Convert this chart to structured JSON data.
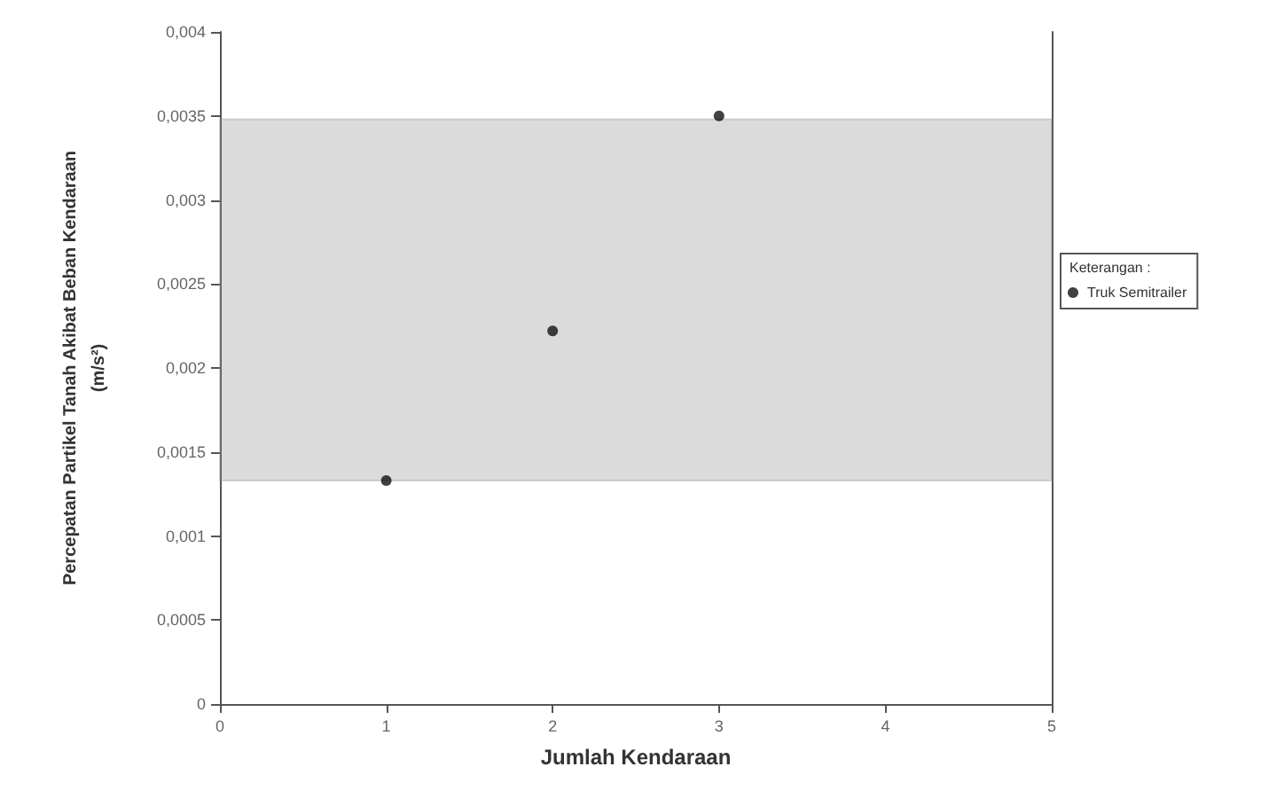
{
  "chart_data": {
    "type": "scatter",
    "xlabel": "Jumlah Kendaraan",
    "ylabel": "Percepatan Partikel Tanah Akibat Beban Kendaraan\n(m/s²)",
    "legend_title": "Keterangan :",
    "x": [
      1,
      2,
      3
    ],
    "series": [
      {
        "name": "Truk Semitrailer",
        "color": "#111111",
        "values": [
          0.00133,
          0.00222,
          0.0035
        ]
      }
    ],
    "xlim": [
      0,
      5
    ],
    "xticks": [
      0,
      1,
      2,
      3,
      4,
      5
    ],
    "ylim": [
      0,
      0.004
    ],
    "yticks": [
      {
        "value": 0,
        "label": "0"
      },
      {
        "value": 0.0005,
        "label": "0,0005"
      },
      {
        "value": 0.001,
        "label": "0,001"
      },
      {
        "value": 0.0015,
        "label": "0,0015"
      },
      {
        "value": 0.002,
        "label": "0,002"
      },
      {
        "value": 0.0025,
        "label": "0,0025"
      },
      {
        "value": 0.003,
        "label": "0,003"
      },
      {
        "value": 0.0035,
        "label": "0,0035"
      },
      {
        "value": 0.004,
        "label": "0,004"
      }
    ],
    "bands": [
      {
        "axis": "y",
        "from": 0.00133,
        "to": 0.00348,
        "color": "#888888"
      }
    ],
    "grid": false,
    "legend": "right",
    "marker": "circle"
  }
}
